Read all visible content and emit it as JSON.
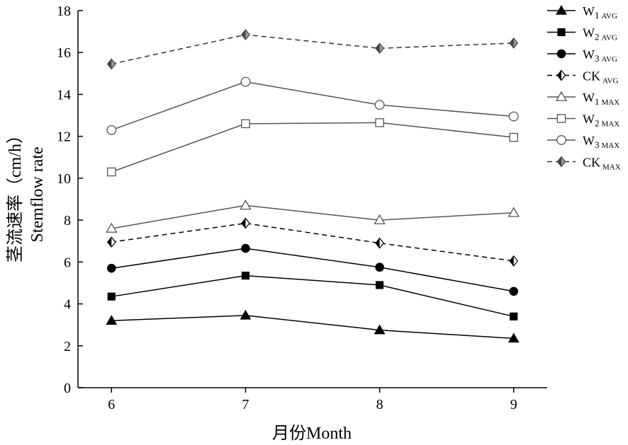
{
  "chart_data": {
    "type": "line",
    "xlabel": "月份Month",
    "ylabel_cn": "茎流速率（cm/h）",
    "ylabel_en": "Stemflow rate",
    "x": [
      6,
      7,
      8,
      9
    ],
    "x_ticks": [
      "6",
      "7",
      "8",
      "9"
    ],
    "xlim": [
      5.75,
      9.25
    ],
    "ylim": [
      0,
      18
    ],
    "y_ticks": [
      "0",
      "2",
      "4",
      "6",
      "8",
      "10",
      "12",
      "14",
      "16",
      "18"
    ],
    "grid": false,
    "legend_position": "top-right",
    "series": [
      {
        "key": "w1avg",
        "legend_main": "W",
        "legend_sub1": "1",
        "legend_sub2": "AVG",
        "marker": "triangle-filled",
        "dash": false,
        "color": "#000000",
        "values": [
          3.2,
          3.45,
          2.75,
          2.35
        ]
      },
      {
        "key": "w2avg",
        "legend_main": "W",
        "legend_sub1": "2",
        "legend_sub2": "AVG",
        "marker": "square-filled",
        "dash": false,
        "color": "#000000",
        "values": [
          4.35,
          5.35,
          4.9,
          3.4
        ]
      },
      {
        "key": "w3avg",
        "legend_main": "W",
        "legend_sub1": "3",
        "legend_sub2": "AVG",
        "marker": "circle-filled",
        "dash": false,
        "color": "#000000",
        "values": [
          5.7,
          6.65,
          5.75,
          4.6
        ]
      },
      {
        "key": "ckavg",
        "legend_main": "CK",
        "legend_sub1": "",
        "legend_sub2": "AVG",
        "marker": "diamond-half",
        "dash": true,
        "color": "#000000",
        "values": [
          6.95,
          7.85,
          6.9,
          6.05
        ]
      },
      {
        "key": "w1max",
        "legend_main": "W",
        "legend_sub1": "1",
        "legend_sub2": "MAX",
        "marker": "triangle-open",
        "dash": false,
        "color": "#555555",
        "values": [
          7.6,
          8.7,
          8.0,
          8.35
        ]
      },
      {
        "key": "w2max",
        "legend_main": "W",
        "legend_sub1": "2",
        "legend_sub2": "MAX",
        "marker": "square-open",
        "dash": false,
        "color": "#555555",
        "values": [
          10.3,
          12.6,
          12.65,
          11.95
        ]
      },
      {
        "key": "w3max",
        "legend_main": "W",
        "legend_sub1": "3",
        "legend_sub2": "MAX",
        "marker": "circle-open",
        "dash": false,
        "color": "#555555",
        "values": [
          12.3,
          14.6,
          13.5,
          12.95
        ]
      },
      {
        "key": "ckmax",
        "legend_main": "CK",
        "legend_sub1": "",
        "legend_sub2": "MAX",
        "marker": "diamond-half-gray",
        "dash": true,
        "color": "#333333",
        "values": [
          15.45,
          16.85,
          16.2,
          16.45
        ]
      }
    ]
  }
}
